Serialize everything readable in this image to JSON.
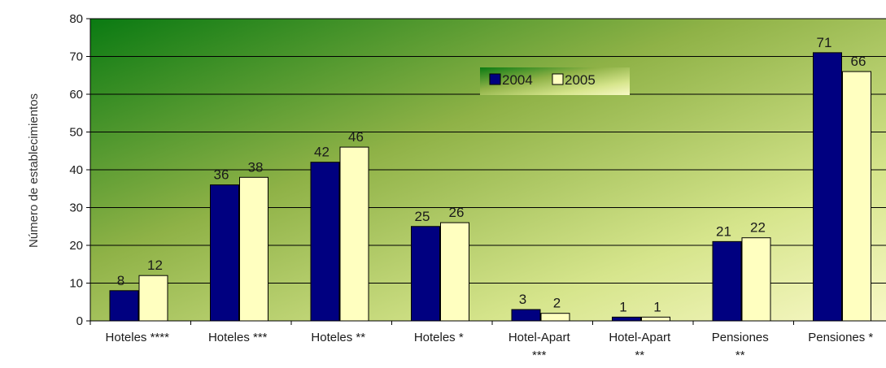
{
  "chart_data": {
    "type": "bar",
    "ylabel": "Número de establecimientos",
    "ylim": [
      0,
      80
    ],
    "yticks": [
      0,
      10,
      20,
      30,
      40,
      50,
      60,
      70,
      80
    ],
    "grid": true,
    "legend_position": "top-center",
    "categories": [
      [
        "Hoteles ****"
      ],
      [
        "Hoteles ***"
      ],
      [
        "Hoteles **"
      ],
      [
        "Hoteles *"
      ],
      [
        "Hotel-Apart",
        "***"
      ],
      [
        "Hotel-Apart",
        "**"
      ],
      [
        "Pensiones",
        "**"
      ],
      [
        "Pensiones *"
      ]
    ],
    "series": [
      {
        "name": "2004",
        "color": "#000080",
        "values": [
          8,
          36,
          42,
          25,
          3,
          1,
          21,
          71
        ]
      },
      {
        "name": "2005",
        "color": "#ffffc0",
        "values": [
          12,
          38,
          46,
          26,
          2,
          1,
          22,
          66
        ]
      }
    ],
    "plot_background": "green-to-pale-yellow gradient"
  }
}
